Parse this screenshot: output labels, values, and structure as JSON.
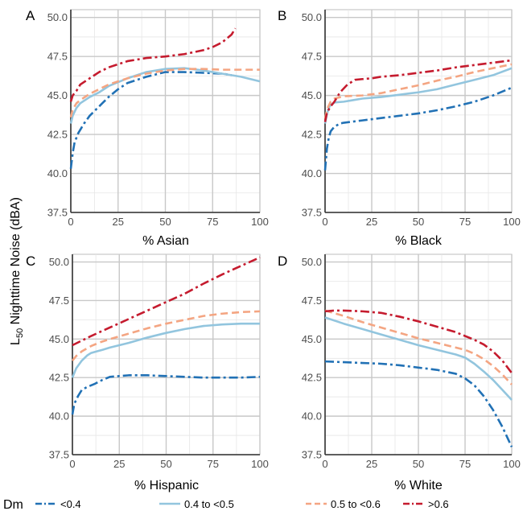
{
  "figure": {
    "ylabel_prefix": "L",
    "ylabel_sub": "50",
    "ylabel_rest": " Nighttime Noise (dBA)"
  },
  "colors": {
    "lt04": "#2171b5",
    "b0405": "#92c5de",
    "b0506": "#f4a582",
    "gt06": "#c51b2e",
    "grid": "#c8c8c8",
    "panel_bg": "#ffffff"
  },
  "legend": {
    "title": "Dm",
    "items": [
      {
        "key": "lt04",
        "label": "<0.4",
        "style": "dashdot"
      },
      {
        "key": "b0405",
        "label": "0.4 to <0.5",
        "style": "solid"
      },
      {
        "key": "b0506",
        "label": "0.5 to <0.6",
        "style": "dashed"
      },
      {
        "key": "gt06",
        "label": ">0.6",
        "style": "dashdot"
      }
    ]
  },
  "chart_data": [
    {
      "type": "line",
      "panel": "A",
      "xlabel": "% Asian",
      "xlim": [
        0,
        100
      ],
      "ylim": [
        37.5,
        50.5
      ],
      "xticks": [
        "0",
        "25",
        "50",
        "75",
        "100"
      ],
      "yticks": [
        "37.5",
        "40.0",
        "42.5",
        "45.0",
        "47.5",
        "50.0"
      ],
      "series": [
        {
          "name": "<0.4",
          "x": [
            0,
            1,
            2,
            4,
            7,
            10,
            15,
            20,
            25,
            30,
            40,
            50,
            60,
            70,
            80,
            85
          ],
          "y": [
            40.3,
            41.3,
            42.0,
            42.6,
            43.2,
            43.7,
            44.3,
            44.9,
            45.4,
            45.8,
            46.2,
            46.5,
            46.5,
            46.45,
            46.4,
            46.3
          ]
        },
        {
          "name": "0.4 to <0.5",
          "x": [
            0,
            1,
            3,
            5,
            10,
            15,
            20,
            30,
            40,
            50,
            60,
            70,
            80,
            90,
            100
          ],
          "y": [
            43.2,
            43.7,
            44.2,
            44.5,
            44.9,
            45.2,
            45.6,
            46.1,
            46.5,
            46.7,
            46.75,
            46.6,
            46.4,
            46.2,
            45.9
          ]
        },
        {
          "name": "0.5 to <0.6",
          "x": [
            0,
            1,
            3,
            5,
            10,
            15,
            20,
            30,
            40,
            50,
            60,
            70,
            80,
            90,
            100
          ],
          "y": [
            43.6,
            44.1,
            44.5,
            44.7,
            45.1,
            45.4,
            45.7,
            46.1,
            46.4,
            46.6,
            46.7,
            46.7,
            46.65,
            46.65,
            46.65
          ]
        },
        {
          "name": ">0.6",
          "x": [
            0,
            1,
            3,
            5,
            10,
            15,
            20,
            30,
            40,
            50,
            60,
            70,
            75,
            80,
            85,
            87
          ],
          "y": [
            44.6,
            45.0,
            45.3,
            45.7,
            46.1,
            46.5,
            46.8,
            47.2,
            47.4,
            47.5,
            47.65,
            47.9,
            48.1,
            48.4,
            48.9,
            49.3
          ]
        }
      ]
    },
    {
      "type": "line",
      "panel": "B",
      "xlabel": "% Black",
      "xlim": [
        0,
        100
      ],
      "ylim": [
        37.5,
        50.5
      ],
      "xticks": [
        "0",
        "25",
        "50",
        "75",
        "100"
      ],
      "yticks": [
        "37.5",
        "40.0",
        "42.5",
        "45.0",
        "47.5",
        "50.0"
      ],
      "series": [
        {
          "name": "<0.4",
          "x": [
            0,
            1,
            2,
            3,
            5,
            8,
            10,
            20,
            30,
            40,
            50,
            60,
            70,
            80,
            90,
            100
          ],
          "y": [
            40.2,
            41.6,
            42.3,
            42.7,
            43.0,
            43.2,
            43.25,
            43.4,
            43.55,
            43.7,
            43.85,
            44.05,
            44.3,
            44.6,
            45.0,
            45.5
          ]
        },
        {
          "name": "0.4 to <0.5",
          "x": [
            0,
            1,
            2,
            3,
            5,
            10,
            15,
            20,
            30,
            40,
            50,
            60,
            70,
            80,
            90,
            100
          ],
          "y": [
            43.2,
            43.8,
            44.2,
            44.4,
            44.55,
            44.6,
            44.7,
            44.8,
            44.9,
            45.05,
            45.2,
            45.4,
            45.7,
            46.0,
            46.3,
            46.75
          ]
        },
        {
          "name": "0.5 to <0.6",
          "x": [
            0,
            1,
            3,
            5,
            10,
            20,
            30,
            40,
            50,
            60,
            70,
            80,
            90,
            100
          ],
          "y": [
            43.5,
            44.1,
            44.6,
            44.8,
            44.95,
            45.0,
            45.15,
            45.4,
            45.65,
            45.95,
            46.2,
            46.5,
            46.75,
            47.0
          ]
        },
        {
          "name": ">0.6",
          "x": [
            0,
            1,
            3,
            5,
            8,
            12,
            16,
            20,
            25,
            30,
            40,
            50,
            60,
            70,
            80,
            90,
            100
          ],
          "y": [
            43.3,
            43.9,
            44.3,
            44.6,
            45.2,
            45.7,
            46.0,
            46.05,
            46.1,
            46.2,
            46.3,
            46.45,
            46.6,
            46.8,
            46.95,
            47.1,
            47.25
          ]
        }
      ]
    },
    {
      "type": "line",
      "panel": "C",
      "xlabel": "% Hispanic",
      "xlim": [
        0,
        100
      ],
      "ylim": [
        37.5,
        50.5
      ],
      "xticks": [
        "0",
        "25",
        "50",
        "75",
        "100"
      ],
      "yticks": [
        "37.5",
        "40.0",
        "42.5",
        "45.0",
        "47.5",
        "50.0"
      ],
      "series": [
        {
          "name": "<0.4",
          "x": [
            0,
            1,
            3,
            5,
            8,
            12,
            16,
            20,
            25,
            30,
            40,
            50,
            60,
            70,
            80,
            90,
            100
          ],
          "y": [
            40.1,
            40.8,
            41.3,
            41.7,
            41.9,
            42.1,
            42.35,
            42.55,
            42.6,
            42.65,
            42.65,
            42.6,
            42.55,
            42.5,
            42.5,
            42.5,
            42.55
          ]
        },
        {
          "name": "0.4 to <0.5",
          "x": [
            0,
            2,
            5,
            8,
            10,
            13,
            16,
            20,
            30,
            40,
            50,
            60,
            70,
            80,
            90,
            100
          ],
          "y": [
            42.5,
            43.1,
            43.6,
            43.95,
            44.1,
            44.2,
            44.3,
            44.45,
            44.75,
            45.1,
            45.4,
            45.65,
            45.85,
            45.95,
            46.0,
            46.0
          ]
        },
        {
          "name": "0.5 to <0.6",
          "x": [
            0,
            2,
            5,
            10,
            15,
            20,
            30,
            40,
            50,
            60,
            70,
            80,
            90,
            100
          ],
          "y": [
            43.6,
            43.9,
            44.2,
            44.55,
            44.8,
            45.0,
            45.35,
            45.7,
            46.0,
            46.25,
            46.5,
            46.65,
            46.75,
            46.8
          ]
        },
        {
          "name": ">0.6",
          "x": [
            0,
            5,
            10,
            20,
            30,
            40,
            50,
            60,
            70,
            80,
            90,
            100
          ],
          "y": [
            44.6,
            44.9,
            45.2,
            45.75,
            46.3,
            46.85,
            47.4,
            47.95,
            48.6,
            49.2,
            49.75,
            50.3
          ]
        }
      ]
    },
    {
      "type": "line",
      "panel": "D",
      "xlabel": "% White",
      "xlim": [
        0,
        100
      ],
      "ylim": [
        37.5,
        50.5
      ],
      "xticks": [
        "0",
        "25",
        "50",
        "75",
        "100"
      ],
      "yticks": [
        "37.5",
        "40.0",
        "42.5",
        "45.0",
        "47.5",
        "50.0"
      ],
      "series": [
        {
          "name": "<0.4",
          "x": [
            0,
            10,
            20,
            30,
            40,
            50,
            60,
            70,
            75,
            80,
            85,
            90,
            95,
            100
          ],
          "y": [
            43.55,
            43.5,
            43.45,
            43.4,
            43.3,
            43.15,
            43.0,
            42.75,
            42.45,
            42.0,
            41.3,
            40.4,
            39.3,
            38.0
          ]
        },
        {
          "name": "0.4 to <0.5",
          "x": [
            0,
            10,
            20,
            30,
            40,
            50,
            60,
            70,
            75,
            80,
            85,
            90,
            95,
            100
          ],
          "y": [
            46.4,
            46.0,
            45.65,
            45.3,
            44.95,
            44.6,
            44.3,
            44.0,
            43.8,
            43.4,
            42.9,
            42.35,
            41.7,
            41.05
          ]
        },
        {
          "name": "0.5 to <0.6",
          "x": [
            0,
            10,
            20,
            30,
            40,
            50,
            60,
            70,
            75,
            80,
            85,
            90,
            95,
            100
          ],
          "y": [
            46.85,
            46.5,
            46.1,
            45.75,
            45.4,
            45.05,
            44.75,
            44.45,
            44.3,
            44.05,
            43.7,
            43.25,
            42.7,
            42.05
          ]
        },
        {
          "name": ">0.6",
          "x": [
            0,
            5,
            10,
            20,
            30,
            40,
            50,
            60,
            70,
            75,
            80,
            85,
            90,
            95,
            100
          ],
          "y": [
            46.8,
            46.85,
            46.85,
            46.8,
            46.7,
            46.45,
            46.15,
            45.8,
            45.45,
            45.2,
            44.95,
            44.65,
            44.2,
            43.6,
            42.8
          ]
        }
      ]
    }
  ]
}
